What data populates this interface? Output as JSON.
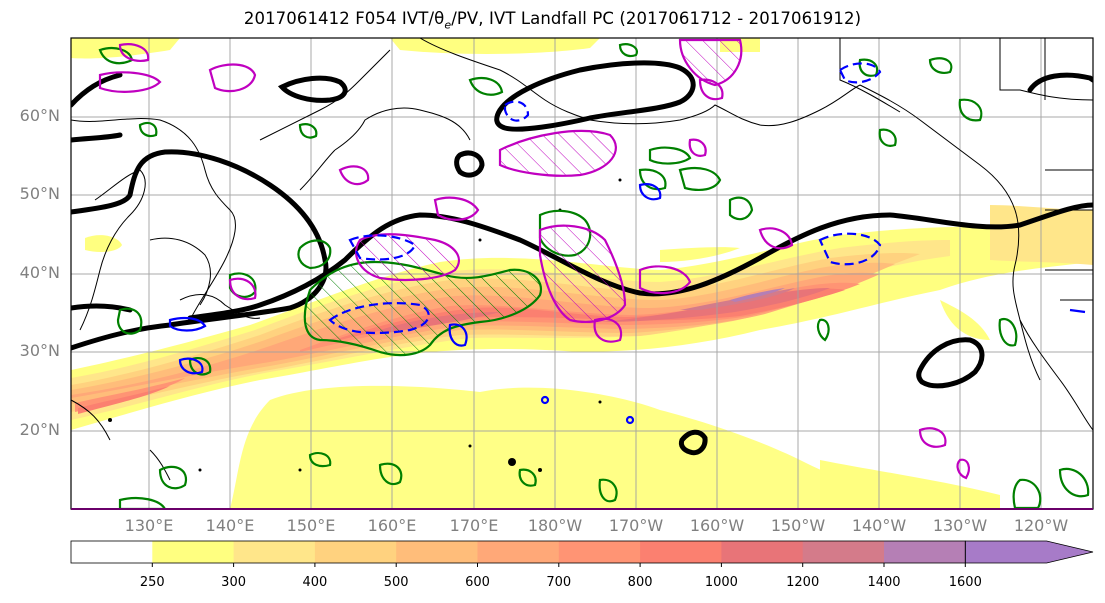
{
  "title": "2017061412 F054 IVT/θₑ/PV, IVT Landfall PC (2017061712 - 2017061912)",
  "map": {
    "lat_labels": [
      "60°N",
      "50°N",
      "40°N",
      "30°N",
      "20°N"
    ],
    "lon_labels": [
      "130°E",
      "140°E",
      "150°E",
      "160°E",
      "170°E",
      "180°W",
      "170°W",
      "160°W",
      "150°W",
      "140°W",
      "130°W",
      "120°W"
    ],
    "extent": {
      "lon_min": 120,
      "lon_max": 246,
      "lat_min": 10,
      "lat_max": 70
    },
    "grid": true
  },
  "colorbar": {
    "levels": [
      250,
      300,
      400,
      500,
      600,
      700,
      800,
      1000,
      1200,
      1400,
      1600
    ],
    "labels": [
      "250",
      "300",
      "400",
      "500",
      "600",
      "700",
      "800",
      "1000",
      "1200",
      "1400",
      "1600"
    ],
    "colors": [
      "#ffffff",
      "#ffff80",
      "#ffe68a",
      "#ffd27f",
      "#ffbd7a",
      "#ffa878",
      "#ff9474",
      "#fb8070",
      "#e87478",
      "#d47b8a",
      "#b57fb5",
      "#a77bc8"
    ],
    "extend": "max"
  },
  "contour_colors": {
    "theta_e": "#000000",
    "pv_positive": "#008000",
    "pv_magenta": "#c000c0",
    "pv_negative": "#0000ff"
  }
}
